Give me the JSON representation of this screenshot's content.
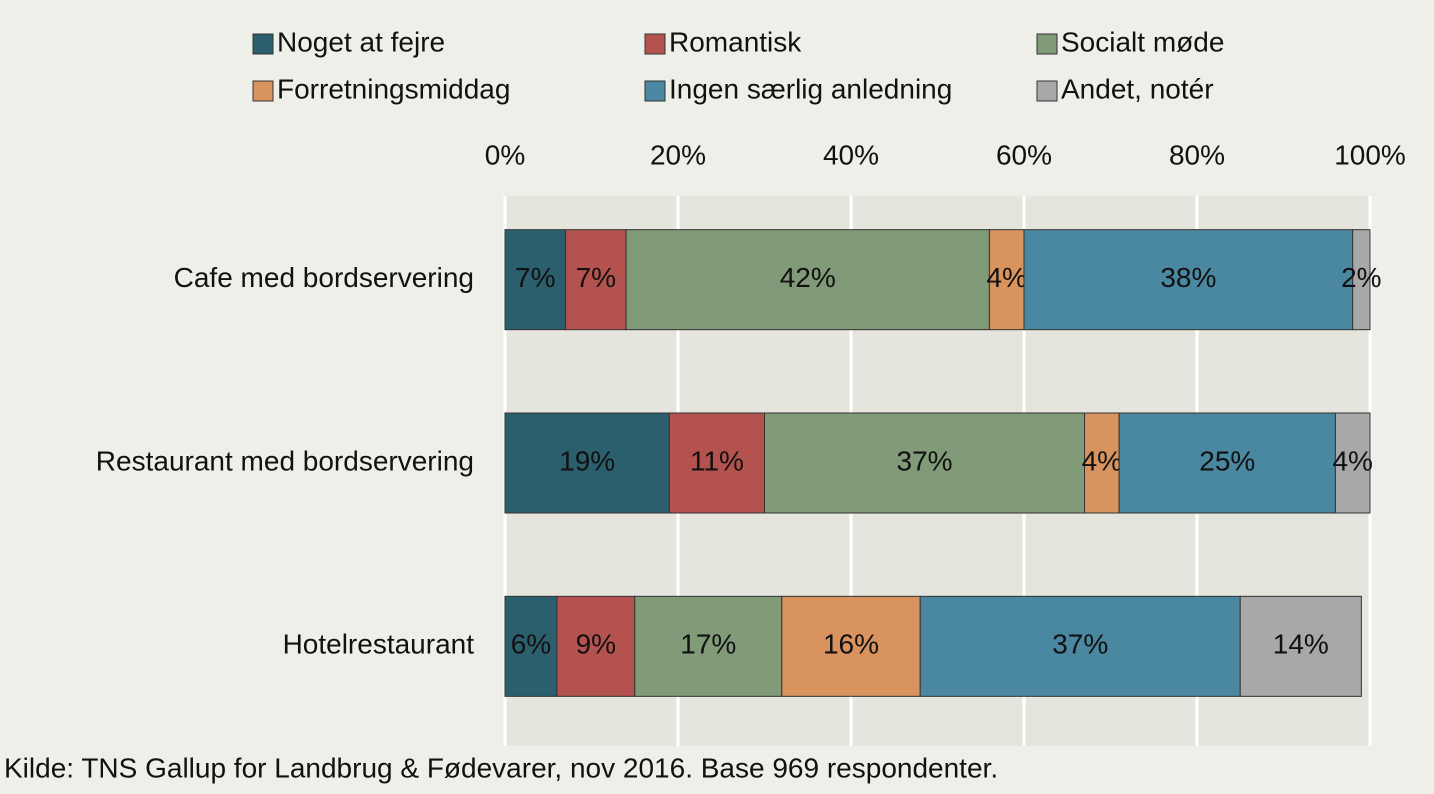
{
  "chart_data": {
    "type": "bar",
    "orientation": "horizontal",
    "stacked": true,
    "categories": [
      "Cafe med bordservering",
      "Restaurant med bordservering",
      "Hotelrestaurant"
    ],
    "series": [
      {
        "name": "Noget at fejre",
        "color": "#2b5f6d",
        "values": [
          7,
          19,
          6
        ],
        "value_labels": [
          "7%",
          "19%",
          "6%"
        ]
      },
      {
        "name": "Romantisk",
        "color": "#b4524f",
        "values": [
          7,
          11,
          9
        ],
        "value_labels": [
          "7%",
          "11%",
          "9%"
        ]
      },
      {
        "name": "Socialt møde",
        "color": "#819a77",
        "values": [
          42,
          37,
          17
        ],
        "value_labels": [
          "42%",
          "37%",
          "17%"
        ]
      },
      {
        "name": "Forretningsmiddag",
        "color": "#d9935f",
        "values": [
          4,
          4,
          16
        ],
        "value_labels": [
          "4%",
          "4%",
          "16%"
        ]
      },
      {
        "name": "Ingen særlig anledning",
        "color": "#4a87a0",
        "values": [
          38,
          25,
          37
        ],
        "value_labels": [
          "38%",
          "25%",
          "37%"
        ]
      },
      {
        "name": "Andet, notér",
        "color": "#a8a8a8",
        "values": [
          2,
          4,
          14
        ],
        "value_labels": [
          "2%",
          "4%",
          "14%"
        ]
      }
    ],
    "xlim": [
      0,
      100
    ],
    "xticks": [
      {
        "value": 0,
        "label": "0%"
      },
      {
        "value": 20,
        "label": "20%"
      },
      {
        "value": 40,
        "label": "40%"
      },
      {
        "value": 60,
        "label": "60%"
      },
      {
        "value": 80,
        "label": "80%"
      },
      {
        "value": 100,
        "label": "100%"
      }
    ],
    "grid": true,
    "legend": "top",
    "source": "Kilde: TNS Gallup for Landbrug & Fødevarer, nov 2016. Base 969 respondenter."
  }
}
